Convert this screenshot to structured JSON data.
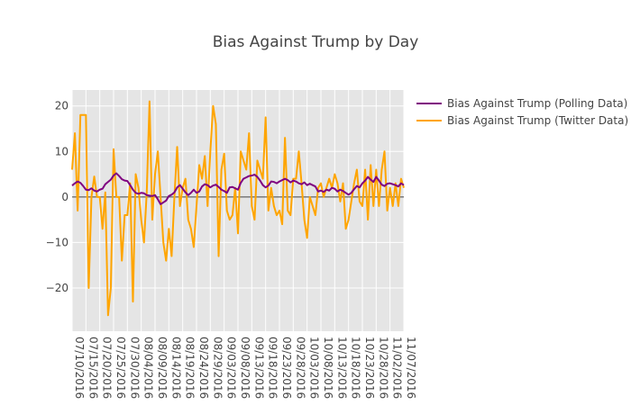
{
  "chart_data": {
    "type": "line",
    "title": "Bias Against Trump by Day",
    "xlabel": "",
    "ylabel": "",
    "x_start": "07/10/2016",
    "x_end": "11/07/2016",
    "xlim": [
      "07/10/2016",
      "11/07/2016"
    ],
    "ylim": [
      -29.5,
      23.5
    ],
    "y_ticks": [
      -20,
      -10,
      0,
      10,
      20
    ],
    "y_tick_labels": [
      "−20",
      "−10",
      "0",
      "10",
      "20"
    ],
    "x_ticks": [
      "07/10/2016",
      "07/15/2016",
      "07/20/2016",
      "07/25/2016",
      "07/30/2016",
      "08/04/2016",
      "08/09/2016",
      "08/14/2016",
      "08/19/2016",
      "08/24/2016",
      "08/29/2016",
      "09/03/2016",
      "09/08/2016",
      "09/13/2016",
      "09/18/2016",
      "09/23/2016",
      "09/28/2016",
      "10/03/2016",
      "10/08/2016",
      "10/13/2016",
      "10/18/2016",
      "10/23/2016",
      "10/28/2016",
      "11/02/2016",
      "11/07/2016"
    ],
    "grid": true,
    "legend_position": "top-right",
    "series": [
      {
        "name": "Bias Against Trump (Polling Data)",
        "color": "#800080",
        "values": [
          2.5,
          3.0,
          3.4,
          3.1,
          2.4,
          1.6,
          1.5,
          1.9,
          1.4,
          1.2,
          1.6,
          1.8,
          2.8,
          3.3,
          3.8,
          4.7,
          5.2,
          4.6,
          3.9,
          3.6,
          3.5,
          2.6,
          1.6,
          0.9,
          0.7,
          0.9,
          0.8,
          0.4,
          0.3,
          0.2,
          0.4,
          -0.5,
          -1.6,
          -1.2,
          -0.8,
          0.2,
          0.5,
          1.0,
          2.1,
          2.6,
          1.8,
          1.0,
          0.4,
          0.9,
          1.6,
          0.9,
          1.2,
          2.3,
          2.8,
          2.6,
          2.1,
          2.5,
          2.7,
          2.2,
          1.6,
          1.3,
          0.9,
          2.1,
          2.2,
          1.9,
          1.6,
          3.1,
          4.0,
          4.3,
          4.6,
          4.7,
          4.9,
          4.4,
          3.6,
          2.6,
          2.1,
          2.5,
          3.4,
          3.3,
          3.0,
          3.4,
          3.7,
          4.0,
          3.7,
          3.2,
          3.6,
          3.4,
          3.0,
          2.8,
          3.2,
          2.6,
          2.9,
          2.6,
          2.3,
          1.2,
          1.4,
          1.1,
          1.6,
          1.4,
          2.0,
          1.8,
          1.2,
          1.6,
          1.3,
          0.9,
          0.5,
          0.9,
          1.7,
          2.4,
          2.1,
          3.0,
          3.6,
          4.4,
          3.8,
          3.3,
          4.4,
          3.6,
          2.7,
          2.4,
          2.9,
          3.0,
          2.8,
          2.6,
          2.3,
          3.0,
          2.6
        ]
      },
      {
        "name": "Bias Against Trump (Twitter Data)",
        "color": "#FFA500",
        "values": [
          6,
          14,
          -3,
          18,
          18,
          18,
          -20,
          0,
          4.5,
          0,
          0,
          -7,
          1,
          -26,
          -20,
          10.5,
          0,
          0,
          -14,
          -4,
          -4,
          3,
          -23,
          5,
          2,
          -5,
          -10,
          1,
          21,
          -5,
          5,
          10,
          0,
          -10,
          -14,
          -7,
          -13,
          0,
          11,
          -2,
          2,
          4,
          -5,
          -7,
          -11,
          -2,
          7,
          4,
          9,
          -2,
          10,
          20,
          16,
          -13,
          6,
          9.5,
          -3,
          -5,
          -4,
          2,
          -8,
          10,
          8,
          6,
          14,
          -2,
          -5,
          8,
          6,
          4,
          17.5,
          -3,
          2,
          -2,
          -4,
          -3,
          -6,
          13,
          -3,
          -4,
          4,
          4,
          10,
          3,
          -5,
          -9,
          0,
          -2,
          -4,
          2,
          3,
          0,
          2,
          4,
          2,
          5,
          3,
          -1,
          3,
          -7,
          -5,
          -1,
          3,
          6,
          -1,
          -2,
          6,
          -5,
          7,
          -2,
          6,
          -2,
          6,
          10,
          -3,
          2,
          -2,
          3,
          -2,
          4,
          2
        ]
      }
    ]
  }
}
